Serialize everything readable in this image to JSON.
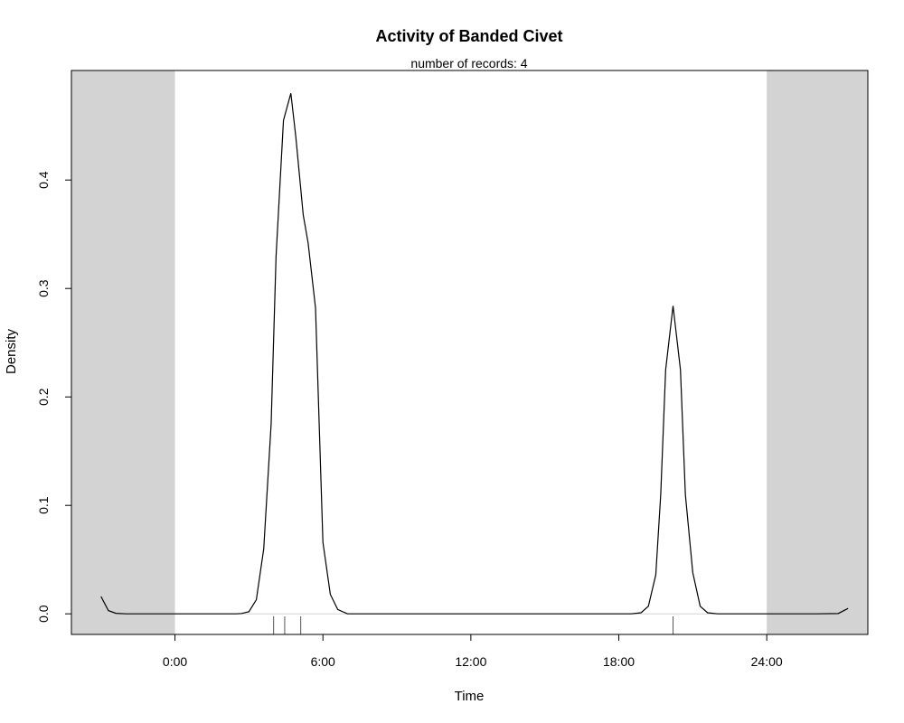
{
  "chart_data": {
    "type": "line",
    "title": "Activity of Banded Civet",
    "subtitle": "number of records: 4",
    "xlabel": "Time",
    "ylabel": "Density",
    "xlim": [
      -4.2,
      28.1
    ],
    "ylim": [
      -0.019,
      0.501
    ],
    "x_ticks": [
      {
        "value": 0,
        "label": "0:00"
      },
      {
        "value": 6,
        "label": "6:00"
      },
      {
        "value": 12,
        "label": "12:00"
      },
      {
        "value": 18,
        "label": "18:00"
      },
      {
        "value": 24,
        "label": "24:00"
      }
    ],
    "y_ticks": [
      {
        "value": 0.0,
        "label": "0.0"
      },
      {
        "value": 0.1,
        "label": "0.1"
      },
      {
        "value": 0.2,
        "label": "0.2"
      },
      {
        "value": 0.3,
        "label": "0.3"
      },
      {
        "value": 0.4,
        "label": "0.4"
      }
    ],
    "shaded_regions": [
      {
        "from": -4.2,
        "to": 0
      },
      {
        "from": 24,
        "to": 28.1
      }
    ],
    "shade_color": "#d3d3d3",
    "line_color": "#000000",
    "records": [
      4.0,
      4.45,
      5.1,
      20.2
    ],
    "grid": false,
    "series": [
      {
        "x": [
          -3,
          -2.7,
          -2.4,
          -2.0,
          -1.5,
          -1.0,
          -0.5,
          0,
          0.5,
          1.0,
          1.5,
          2.0,
          2.5,
          2.7,
          3.0,
          3.3,
          3.6,
          3.9,
          4.1,
          4.4,
          4.7,
          4.9,
          5.2,
          5.4,
          5.7,
          6.0,
          6.3,
          6.6,
          7.0,
          8.0,
          9.0,
          10.0,
          11.0,
          12.0,
          13.0,
          14.0,
          15.0,
          16.0,
          17.0,
          18.0,
          18.5,
          18.9,
          19.2,
          19.5,
          19.7,
          19.9,
          20.2,
          20.5,
          20.7,
          21.0,
          21.3,
          21.6,
          22.0,
          23.0,
          24.0,
          25.0,
          26.0,
          26.9,
          27.3
        ],
        "y": [
          0.016,
          0.003,
          0.0005,
          0.0,
          0.0,
          0.0,
          0.0,
          0.0,
          0.0,
          0.0,
          0.0,
          0.0,
          0.0,
          0.0003,
          0.002,
          0.013,
          0.06,
          0.175,
          0.33,
          0.455,
          0.48,
          0.44,
          0.368,
          0.342,
          0.282,
          0.066,
          0.018,
          0.004,
          0.0,
          0.0,
          0.0,
          0.0,
          0.0,
          0.0,
          0.0,
          0.0,
          0.0,
          0.0,
          0.0,
          0.0,
          0.0,
          0.001,
          0.007,
          0.036,
          0.11,
          0.225,
          0.284,
          0.225,
          0.11,
          0.038,
          0.007,
          0.001,
          0.0,
          0.0,
          0.0,
          0.0,
          0.0,
          0.0003,
          0.005
        ]
      }
    ]
  }
}
